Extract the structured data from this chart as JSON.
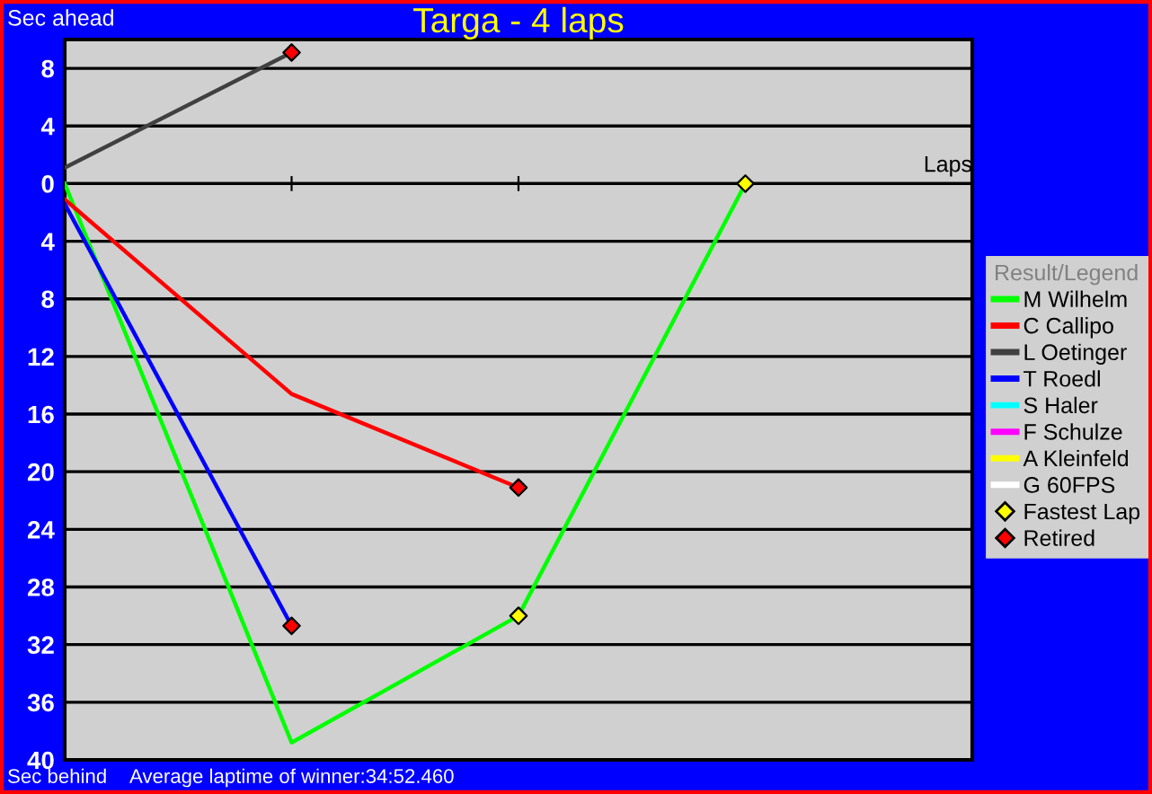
{
  "chart_data": {
    "type": "line",
    "title": "Targa - 4 laps",
    "xlabel": "Laps",
    "ylabel": "Sec ahead",
    "legend_title": "Result/Legend",
    "annotations": [
      "Sec behind",
      "Average laptime of winner:34:52.460"
    ],
    "categories": [
      null,
      null,
      null,
      null
    ],
    "series": [
      {
        "name": "M Wilhelm",
        "color": "#00ff00",
        "values": [
          0,
          -38.8,
          -30,
          0
        ]
      },
      {
        "name": "C Callipo",
        "color": "#ff0000",
        "values": [
          -1.1,
          -14.6,
          -21.1,
          null
        ]
      },
      {
        "name": "L Oetinger",
        "color": "#404040",
        "values": [
          1.1,
          9.1,
          null,
          null
        ]
      },
      {
        "name": "T Roedl",
        "color": "#0000ff",
        "values": [
          -1.4,
          -30.7,
          null,
          null
        ]
      },
      {
        "name": "S Haler",
        "color": "#00ffff",
        "values": [
          null,
          null,
          null,
          null
        ]
      },
      {
        "name": "F Schulze",
        "color": "#ff00ff",
        "values": [
          null,
          null,
          null,
          null
        ]
      },
      {
        "name": "A Kleinfeld",
        "color": "#ffff00",
        "values": [
          null,
          null,
          null,
          null
        ]
      },
      {
        "name": "G 60FPS",
        "color": "#ffffff",
        "values": [
          null,
          null,
          null,
          null
        ]
      },
      {
        "name": "Fastest Lap",
        "type": "scatter",
        "marker": "diamond",
        "color": "#ffff00",
        "values": [
          null,
          null,
          -30,
          0
        ]
      },
      {
        "name": "Retired",
        "type": "scatter",
        "marker": "diamond",
        "color": "#ff0000",
        "values": [
          null,
          9.1,
          -21.1,
          null
        ]
      },
      {
        "type": "scatter",
        "marker": "diamond",
        "color": "#ff0000",
        "values": [
          null,
          -30.7,
          null,
          null
        ]
      }
    ],
    "ylim": [
      -40,
      10
    ],
    "yticks": [
      {
        "value": 8,
        "label": "8"
      },
      {
        "value": 4,
        "label": "4"
      },
      {
        "value": 0,
        "label": "0"
      },
      {
        "value": -4,
        "label": "4"
      },
      {
        "value": -8,
        "label": "8"
      },
      {
        "value": -12,
        "label": "12"
      },
      {
        "value": -16,
        "label": "16"
      },
      {
        "value": -20,
        "label": "20"
      },
      {
        "value": -24,
        "label": "24"
      },
      {
        "value": -28,
        "label": "28"
      },
      {
        "value": -32,
        "label": "32"
      },
      {
        "value": -36,
        "label": "36"
      },
      {
        "value": -40,
        "label": "40"
      }
    ],
    "grid": "y",
    "legend": "right",
    "marker": "none",
    "line_style": "solid"
  }
}
